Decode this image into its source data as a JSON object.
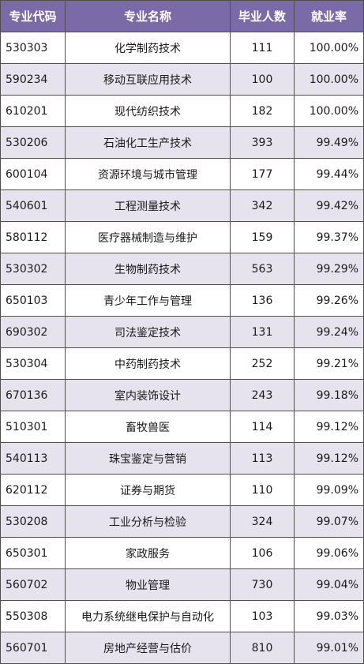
{
  "table": {
    "headers": {
      "code": "专业代码",
      "name": "专业名称",
      "graduates": "毕业人数",
      "rate": "就业率"
    },
    "rows": [
      {
        "code": "530303",
        "name": "化学制药技术",
        "graduates": "111",
        "rate": "100.00%"
      },
      {
        "code": "590234",
        "name": "移动互联应用技术",
        "graduates": "100",
        "rate": "100.00%"
      },
      {
        "code": "610201",
        "name": "现代纺织技术",
        "graduates": "182",
        "rate": "100.00%"
      },
      {
        "code": "530206",
        "name": "石油化工生产技术",
        "graduates": "393",
        "rate": "99.49%"
      },
      {
        "code": "600104",
        "name": "资源环境与城市管理",
        "graduates": "177",
        "rate": "99.44%"
      },
      {
        "code": "540601",
        "name": "工程测量技术",
        "graduates": "342",
        "rate": "99.42%"
      },
      {
        "code": "580112",
        "name": "医疗器械制造与维护",
        "graduates": "159",
        "rate": "99.37%"
      },
      {
        "code": "530302",
        "name": "生物制药技术",
        "graduates": "563",
        "rate": "99.29%"
      },
      {
        "code": "650103",
        "name": "青少年工作与管理",
        "graduates": "136",
        "rate": "99.26%"
      },
      {
        "code": "690302",
        "name": "司法鉴定技术",
        "graduates": "131",
        "rate": "99.24%"
      },
      {
        "code": "530304",
        "name": "中药制药技术",
        "graduates": "252",
        "rate": "99.21%"
      },
      {
        "code": "670136",
        "name": "室内装饰设计",
        "graduates": "243",
        "rate": "99.18%"
      },
      {
        "code": "510301",
        "name": "畜牧兽医",
        "graduates": "114",
        "rate": "99.12%"
      },
      {
        "code": "540113",
        "name": "珠宝鉴定与营销",
        "graduates": "113",
        "rate": "99.12%"
      },
      {
        "code": "620112",
        "name": "证券与期货",
        "graduates": "110",
        "rate": "99.09%"
      },
      {
        "code": "530208",
        "name": "工业分析与检验",
        "graduates": "324",
        "rate": "99.07%"
      },
      {
        "code": "650301",
        "name": "家政服务",
        "graduates": "106",
        "rate": "99.06%"
      },
      {
        "code": "560702",
        "name": "物业管理",
        "graduates": "730",
        "rate": "99.04%"
      },
      {
        "code": "550308",
        "name": "电力系统继电保护与自动化",
        "graduates": "103",
        "rate": "99.03%"
      },
      {
        "code": "560701",
        "name": "房地产经营与估价",
        "graduates": "810",
        "rate": "99.01%"
      }
    ]
  },
  "colors": {
    "header_bg": "#7b6aa8",
    "header_text": "#ffffff",
    "row_alt_bg": "#e6e3ef",
    "row_bg": "#ffffff",
    "border": "#4f4f4f"
  }
}
